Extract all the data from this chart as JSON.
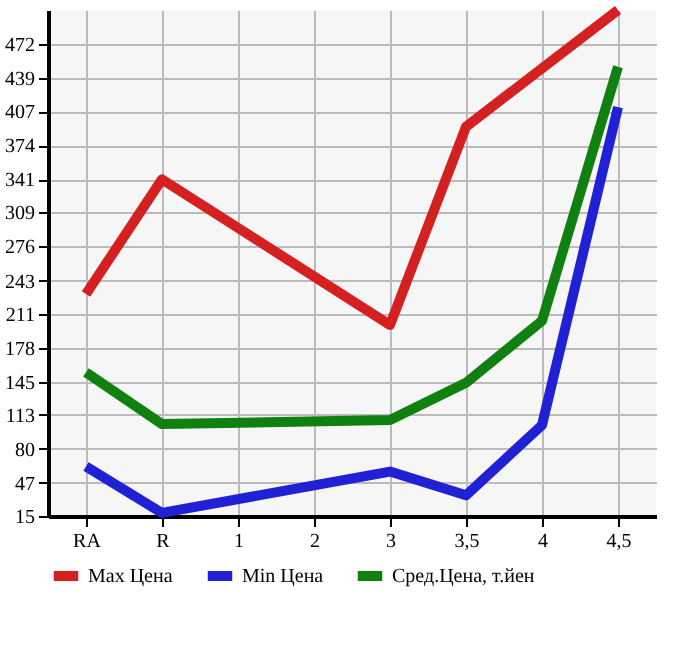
{
  "chart_data": {
    "type": "line",
    "categories": [
      "RA",
      "R",
      "1",
      "2",
      "3",
      "3,5",
      "4",
      "4,5"
    ],
    "series": [
      {
        "name": "Max Цена",
        "color": "#d42020",
        "values": [
          230,
          341,
          null,
          null,
          200,
          392,
          null,
          505
        ]
      },
      {
        "name": "Min Цена",
        "color": "#2020d4",
        "values": [
          63,
          18,
          null,
          null,
          58,
          35,
          103,
          411
        ]
      },
      {
        "name": "Сред.Цена, т.йен",
        "color": "#108010",
        "values": [
          154,
          104,
          null,
          null,
          108,
          144,
          204,
          450
        ]
      }
    ],
    "ylim": [
      15,
      505
    ],
    "yticks": [
      15,
      47,
      80,
      113,
      145,
      178,
      211,
      243,
      276,
      309,
      341,
      374,
      407,
      439,
      472
    ],
    "grid": true,
    "legend": "bottom",
    "marker": "none",
    "line_style": "solid"
  }
}
